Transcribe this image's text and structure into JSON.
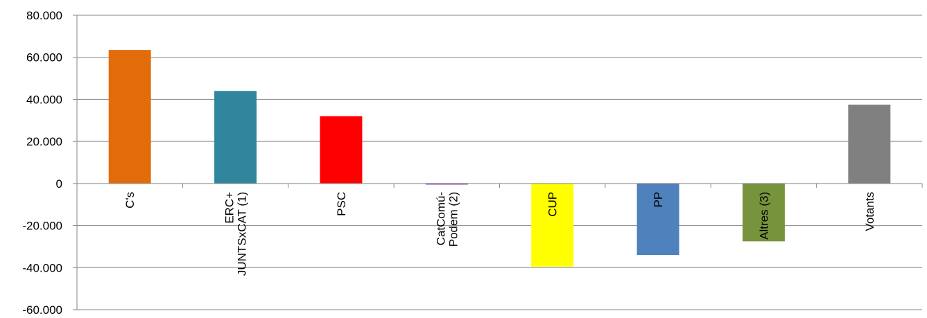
{
  "chart_data": {
    "type": "bar",
    "title": "",
    "xlabel": "",
    "ylabel": "",
    "ylim": [
      -60000,
      80000
    ],
    "yticks": [
      80000,
      60000,
      40000,
      20000,
      0,
      -20000,
      -40000,
      -60000
    ],
    "ytick_labels": [
      "80.000",
      "60.000",
      "40.000",
      "20.000",
      "0",
      "-20.000",
      "-40.000",
      "-60.000"
    ],
    "grid": true,
    "legend": "none",
    "categories": [
      [
        "C's"
      ],
      [
        "ERC+",
        "JUNTSxCAT (1)"
      ],
      [
        "PSC"
      ],
      [
        "CatComú-",
        "Podem (2)"
      ],
      [
        "CUP"
      ],
      [
        "PP"
      ],
      [
        "Altres (3)"
      ],
      [
        "Votants"
      ]
    ],
    "values": [
      63500,
      44000,
      32000,
      -500,
      -39500,
      -34000,
      -27500,
      37500
    ],
    "colors": [
      "#E36C0A",
      "#31859C",
      "#FF0000",
      "#7030A0",
      "#FFFF00",
      "#4F81BD",
      "#77933C",
      "#808080"
    ]
  }
}
